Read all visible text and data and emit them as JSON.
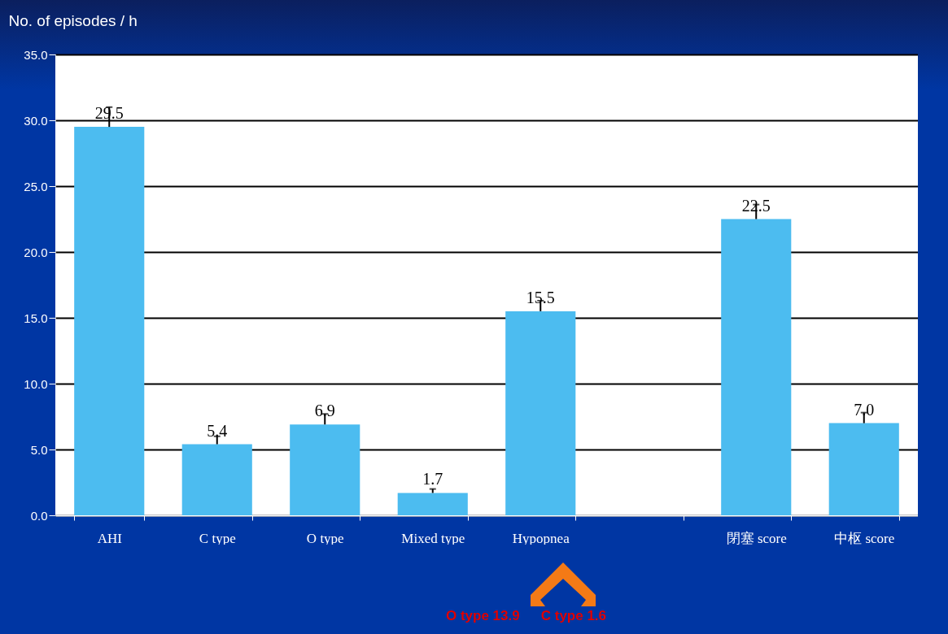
{
  "chart_data": {
    "type": "bar",
    "ylabel": "No. of episodes / h",
    "categories": [
      "AHI",
      "C type",
      "O type",
      "Mixed type",
      "Hypopnea",
      null,
      "閉塞 score",
      "中枢 score"
    ],
    "values": [
      29.5,
      5.4,
      6.9,
      1.7,
      15.5,
      null,
      22.5,
      7.0
    ],
    "errors": [
      [
        29.5,
        31.0
      ],
      [
        5.4,
        6.0
      ],
      [
        6.9,
        7.7
      ],
      [
        1.7,
        2.0
      ],
      [
        15.5,
        16.3
      ],
      null,
      [
        22.5,
        23.6
      ],
      [
        7.0,
        7.8
      ]
    ],
    "color": "#4cbcf0",
    "ylim": [
      0,
      35
    ],
    "yticks": [
      {
        "value": 0,
        "label": "0.0"
      },
      {
        "value": 5,
        "label": "5.0"
      },
      {
        "value": 10,
        "label": "10.0"
      },
      {
        "value": 15,
        "label": "15.0"
      },
      {
        "value": 20,
        "label": "20.0"
      },
      {
        "value": 25,
        "label": "25.0"
      },
      {
        "value": 30,
        "label": "30.0"
      },
      {
        "value": 35,
        "label": "35.0"
      }
    ],
    "grid": "y",
    "value_labels": [
      "29.5",
      "5.4",
      "6.9",
      "1.7",
      "15.5",
      null,
      "22.5",
      "7.0"
    ],
    "annotations": [
      "O type 13.9",
      "C type 1.6"
    ]
  }
}
